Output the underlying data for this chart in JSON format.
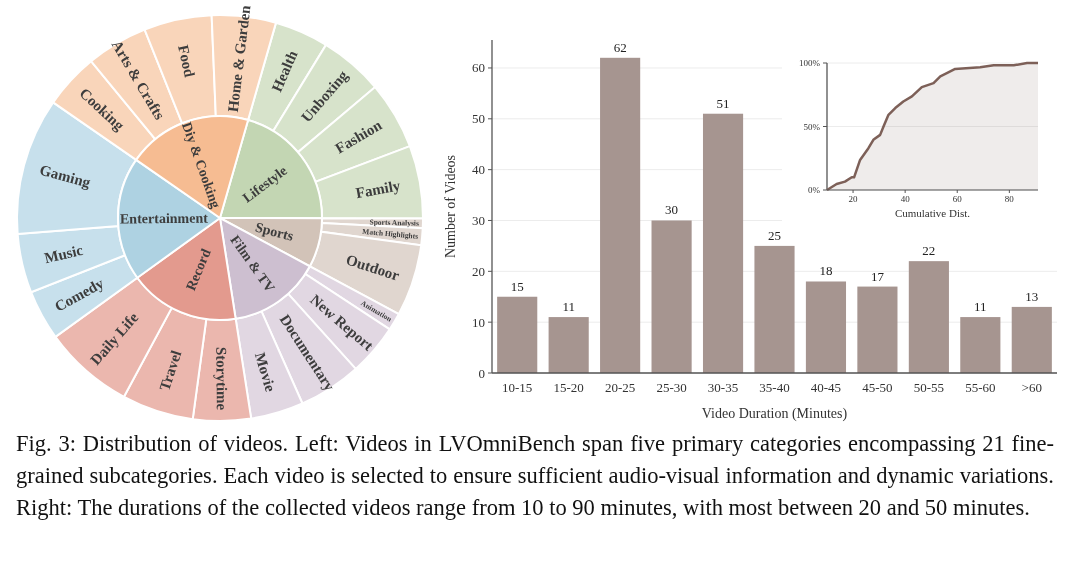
{
  "chart_data": [
    {
      "type": "donut",
      "categories": [
        "Health",
        "Unboxing",
        "Fashion",
        "Family",
        "Sports Analysis",
        "Match Highlights",
        "Outdoor",
        "Animation",
        "New Report",
        "Documentary",
        "Movie",
        "Storytime",
        "Travel",
        "Daily Life",
        "Comedy",
        "Music",
        "Gaming",
        "Cooking",
        "Arts & Crafts",
        "Food",
        "Home & Garden"
      ],
      "values": [
        4.3,
        5.1,
        5.4,
        5.8,
        0.75,
        1.35,
        5.7,
        1.4,
        4.1,
        5.0,
        4.2,
        4.6,
        5.7,
        7.2,
        4.0,
        4.7,
        10.9,
        4.4,
        4.9,
        5.4,
        5.1
      ],
      "colors": [
        "#d7e3cb",
        "#d7e3cb",
        "#d7e3cb",
        "#d7e3cb",
        "#e0d6cf",
        "#e0d6cf",
        "#e0d6cf",
        "#e1d7e2",
        "#e1d7e2",
        "#e1d7e2",
        "#e1d7e2",
        "#ebb7ae",
        "#ebb7ae",
        "#ebb7ae",
        "#c7e0ec",
        "#c7e0ec",
        "#c7e0ec",
        "#f9d5ba",
        "#f9d5ba",
        "#f9d5ba",
        "#f9d5ba"
      ]
    },
    {
      "type": "pie",
      "categories": [
        "Lifestyle",
        "Sports",
        "Film & TV",
        "Record",
        "Entertainment",
        "Diy & Cooking"
      ],
      "values": [
        20.6,
        7.8,
        14.7,
        17.5,
        19.6,
        19.8
      ],
      "colors": [
        "#c3d6b3",
        "#d2c3b8",
        "#cdbfd0",
        "#e39a8e",
        "#aed2e2",
        "#f6bc92"
      ]
    },
    {
      "type": "bar",
      "categories": [
        "10-15",
        "15-20",
        "20-25",
        "25-30",
        "30-35",
        "35-40",
        "40-45",
        "45-50",
        "50-55",
        "55-60",
        ">60"
      ],
      "values": [
        15,
        11,
        62,
        30,
        51,
        25,
        18,
        17,
        22,
        11,
        13
      ],
      "color": "#a69590",
      "ylim": [
        0,
        65.5
      ],
      "yticks": [
        0,
        10,
        20,
        30,
        40,
        50,
        60
      ],
      "grid": "y",
      "data_labels": true,
      "xlabel": "Video Duration (Minutes)",
      "ylabel": "Number of Videos",
      "annotations": [
        "Fig. 3: Distribution of videos. Left: Videos in LVOmniBench span five primary categories encompassing 21 fine-grained subcategories. Each video is selected to ensure sufficient audio-visual information and dynamic variations. Right: The durations of the collected videos range from 10 to 90 minutes, with most between 20 and 50 minutes."
      ]
    },
    {
      "type": "area",
      "x": [
        10,
        13.7,
        16.9,
        19.5,
        20.4,
        22.7,
        25.9,
        27.8,
        30.4,
        31.7,
        33.6,
        36.2,
        39.3,
        42.6,
        46.4,
        50.9,
        53.5,
        56,
        59.2,
        68.8,
        74,
        81.7,
        86.8,
        91
      ],
      "values": [
        0,
        4.7,
        6.6,
        10,
        10,
        23.7,
        32.9,
        39.5,
        43.4,
        50,
        59.2,
        64.5,
        69.7,
        73.7,
        81,
        84.2,
        89.5,
        92,
        95.3,
        96.6,
        98.2,
        98.2,
        100,
        100
      ],
      "color": "#7d6058",
      "xlim": [
        10,
        91
      ],
      "xticks": [
        20,
        40,
        60,
        80
      ],
      "ylim": [
        0,
        100
      ],
      "yticks": [
        {
          "value": 0,
          "label": "0%"
        },
        {
          "value": 50,
          "label": "50%"
        },
        {
          "value": 100,
          "label": "100%"
        }
      ],
      "grid": "y",
      "xlabel": "Cumulative Dist."
    }
  ]
}
